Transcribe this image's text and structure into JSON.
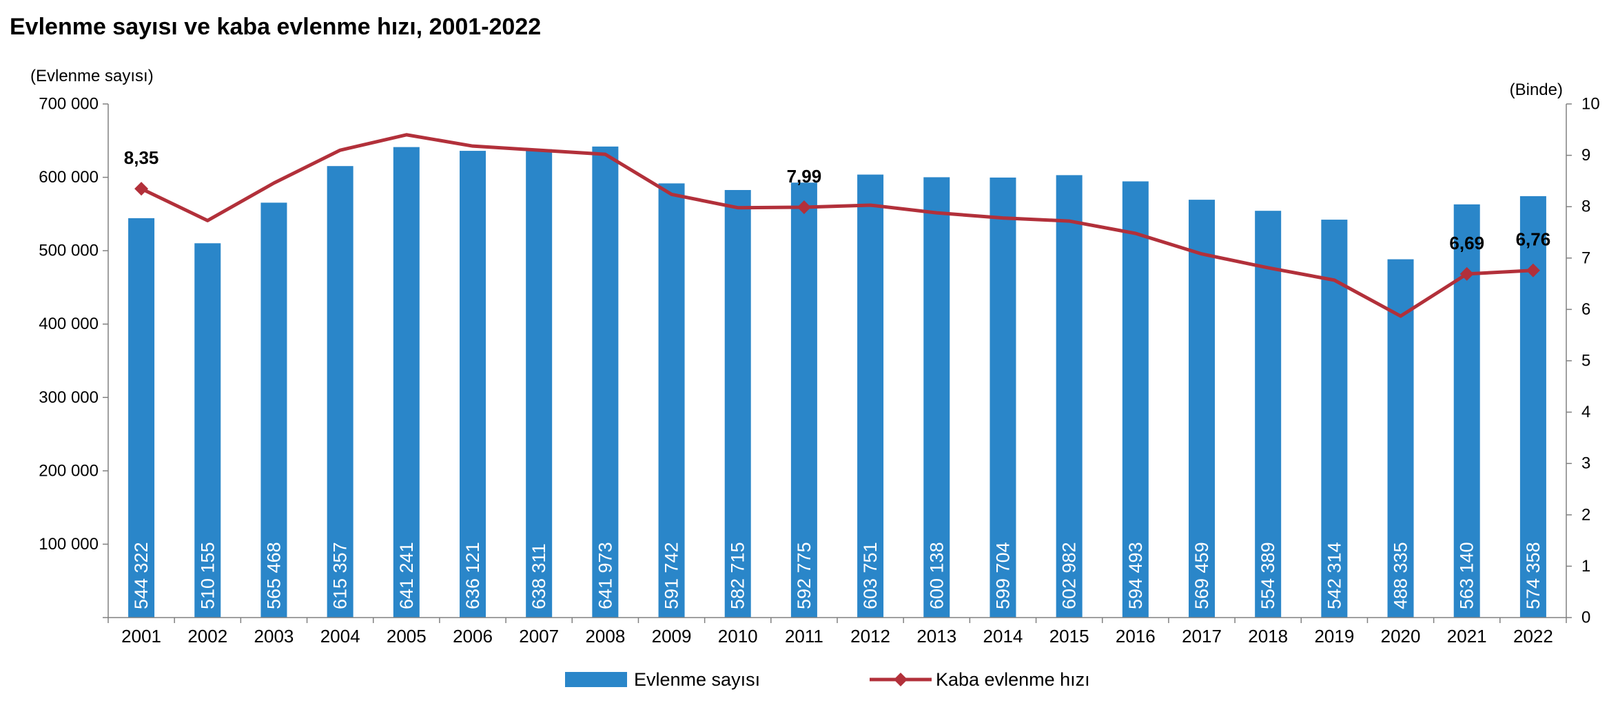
{
  "chart_data": {
    "type": "bar",
    "title": "Evlenme sayısı ve kaba evlenme hızı, 2001-2022",
    "y_left_label": "(Evlenme sayısı)",
    "y_right_label": "(Binde)",
    "categories": [
      "2001",
      "2002",
      "2003",
      "2004",
      "2005",
      "2006",
      "2007",
      "2008",
      "2009",
      "2010",
      "2011",
      "2012",
      "2013",
      "2014",
      "2015",
      "2016",
      "2017",
      "2018",
      "2019",
      "2020",
      "2021",
      "2022"
    ],
    "series": [
      {
        "name": "Evlenme sayısı",
        "type": "bar",
        "axis": "left",
        "color": "#2a86c9",
        "values": [
          544322,
          510155,
          565468,
          615357,
          641241,
          636121,
          638311,
          641973,
          591742,
          582715,
          592775,
          603751,
          600138,
          599704,
          602982,
          594493,
          569459,
          554389,
          542314,
          488335,
          563140,
          574358
        ],
        "labels": [
          "544 322",
          "510 155",
          "565 468",
          "615 357",
          "641 241",
          "636 121",
          "638 311",
          "641 973",
          "591 742",
          "582 715",
          "592 775",
          "603 751",
          "600 138",
          "599 704",
          "602 982",
          "594 493",
          "569 459",
          "554 389",
          "542 314",
          "488 335",
          "563 140",
          "574 358"
        ]
      },
      {
        "name": "Kaba evlenme hızı",
        "type": "line",
        "axis": "right",
        "color": "#b2303a",
        "values": [
          8.35,
          7.73,
          8.46,
          9.1,
          9.4,
          9.18,
          9.1,
          9.02,
          8.24,
          7.98,
          7.99,
          8.03,
          7.88,
          7.78,
          7.72,
          7.48,
          7.08,
          6.81,
          6.57,
          5.87,
          6.69,
          6.76
        ],
        "point_labels": {
          "0": "8,35",
          "10": "7,99",
          "20": "6,69",
          "21": "6,76"
        }
      }
    ],
    "y_left": {
      "min": 0,
      "max": 700000,
      "ticks": [
        0,
        100000,
        200000,
        300000,
        400000,
        500000,
        600000,
        700000
      ],
      "tick_labels": [
        "",
        "100 000",
        "200 000",
        "300 000",
        "400 000",
        "500 000",
        "600 000",
        "700 000"
      ]
    },
    "y_right": {
      "min": 0,
      "max": 10,
      "ticks": [
        0,
        1,
        2,
        3,
        4,
        5,
        6,
        7,
        8,
        9,
        10
      ],
      "tick_labels": [
        "0",
        "1",
        "2",
        "3",
        "4",
        "5",
        "6",
        "7",
        "8",
        "9",
        "10"
      ]
    },
    "legend_position": "bottom",
    "grid": false
  }
}
